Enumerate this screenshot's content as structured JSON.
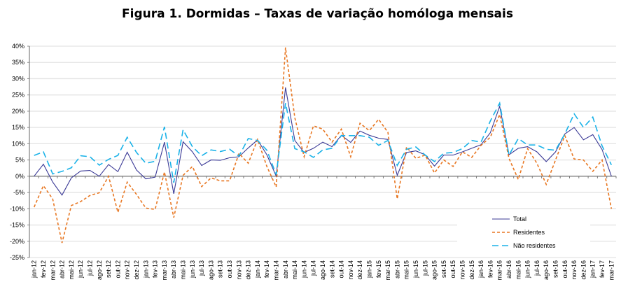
{
  "chart_data": {
    "type": "line",
    "title": "Figura 1. Dormidas – Taxas de variação homóloga mensais",
    "xlabel": "",
    "ylabel": "",
    "ylim": [
      -25,
      40
    ],
    "yticks": [
      40,
      35,
      30,
      25,
      20,
      15,
      10,
      5,
      0,
      -5,
      -10,
      -15,
      -20,
      -25
    ],
    "ytick_suffix": "%",
    "grid": true,
    "legend_position": "bottom-right",
    "categories": [
      "jan-12",
      "fev-12",
      "mar-12",
      "abr-12",
      "mai-12",
      "jun-12",
      "jul-12",
      "ago-12",
      "set-12",
      "out-12",
      "nov-12",
      "dez-12",
      "jan-13",
      "fev-13",
      "mar-13",
      "abr-13",
      "mai-13",
      "jun-13",
      "jul-13",
      "ago-13",
      "set-13",
      "out-13",
      "nov-13",
      "dez-13",
      "jan-14",
      "fev-14",
      "mar-14",
      "abr-14",
      "mai-14",
      "jun-14",
      "jul-14",
      "ago-14",
      "set-14",
      "out-14",
      "nov-14",
      "dez-14",
      "jan-15",
      "fev-15",
      "mar-15",
      "abr-15",
      "mai-15",
      "jun-15",
      "jul-15",
      "ago-15",
      "set-15",
      "out-15",
      "nov-15",
      "dez-15",
      "jan-16",
      "fev-16",
      "mar-16",
      "abr-16",
      "mai-16",
      "jun-16",
      "jul-16",
      "ago-16",
      "set-16",
      "out-16",
      "nov-16",
      "dez-16",
      "jan-17",
      "fev-17",
      "mar-17"
    ],
    "series": [
      {
        "name": "Total",
        "color": "#3b3a96",
        "dash": "",
        "values": [
          0,
          3.7,
          -1.8,
          -5.8,
          -0.5,
          1.6,
          1.8,
          0,
          3.6,
          1.4,
          7.4,
          1.9,
          -0.8,
          -0.3,
          10.5,
          -5.4,
          10.6,
          7.5,
          3.3,
          5.0,
          4.9,
          5.7,
          6.0,
          8.7,
          11.2,
          6.6,
          0,
          27.3,
          11.0,
          7.3,
          8.6,
          10.5,
          9.1,
          12.6,
          10.4,
          13.9,
          12.6,
          11.7,
          11.3,
          0.3,
          7.3,
          7.8,
          6.6,
          3.1,
          6.5,
          6.5,
          7.5,
          8.6,
          9.7,
          13.4,
          21.5,
          6.6,
          8.6,
          9.1,
          7.5,
          4.5,
          7.5,
          13.0,
          15.0,
          11.2,
          12.8,
          8.2,
          0
        ]
      },
      {
        "name": "Residentes",
        "color": "#e87722",
        "dash": "4,3",
        "values": [
          -9.5,
          -2.9,
          -7,
          -20.5,
          -9,
          -7.8,
          -5.9,
          -5.1,
          0,
          -11.1,
          -1.8,
          -5.6,
          -9.8,
          -10.2,
          1.3,
          -12.7,
          0.3,
          3,
          -3.2,
          -0.5,
          -1.4,
          -1.4,
          7,
          4,
          11.3,
          3,
          -3.3,
          39.6,
          18,
          6,
          15.5,
          14.5,
          10.5,
          14.5,
          6,
          16.3,
          14,
          17.5,
          13.5,
          -7,
          9,
          5.5,
          6.5,
          1,
          5,
          3,
          7.5,
          5.8,
          9.5,
          12,
          19,
          5.5,
          -1,
          8.5,
          4,
          -2.5,
          5,
          12.5,
          5.3,
          5,
          1.5,
          5,
          -10
        ]
      },
      {
        "name": "Não residentes",
        "color": "#1ab2e8",
        "dash": "9,5",
        "values": [
          6.4,
          7.5,
          0.7,
          1.5,
          2.6,
          6.3,
          6,
          3.4,
          5.2,
          6.4,
          12,
          7.3,
          4,
          4.6,
          15.2,
          -2,
          14.3,
          9.1,
          6.3,
          8.1,
          7.6,
          8.3,
          6.2,
          11.6,
          11,
          8,
          0.5,
          22.5,
          8.5,
          7.5,
          5.8,
          8.1,
          8.6,
          12.5,
          12.5,
          12.5,
          12,
          9.5,
          11,
          3.3,
          8.3,
          9,
          6.5,
          4.5,
          7.1,
          7.3,
          8.5,
          11,
          10.5,
          17,
          22.5,
          6.5,
          11.6,
          9.6,
          9.6,
          8.3,
          8,
          13,
          19.2,
          15,
          18.2,
          9.3,
          3.5
        ]
      }
    ]
  }
}
